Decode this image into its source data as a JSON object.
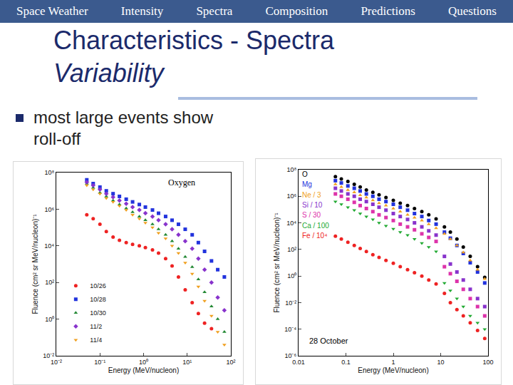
{
  "slide": {
    "nav": [
      "Space Weather",
      "Intensity",
      "Spectra",
      "Composition",
      "Predictions",
      "Questions"
    ],
    "title": "Characteristics - Spectra",
    "subtitle": "Variability",
    "bullets": [
      "most large events show roll-off"
    ]
  },
  "chart_data": [
    {
      "type": "scatter",
      "title": "Oxygen",
      "log": true,
      "grid": false,
      "legend": "lower left",
      "x_label": "Energy (MeV/nucleon)",
      "y_label": "Fluence (cm² sr MeV/nucleon)⁻¹",
      "x": [
        0.05,
        0.07,
        0.1,
        0.14,
        0.2,
        0.28,
        0.4,
        0.56,
        0.8,
        1.1,
        1.6,
        2.2,
        3.2,
        4.5,
        6.3,
        9,
        13,
        18,
        25,
        36,
        50,
        71
      ],
      "xlim": [
        0.01,
        100
      ],
      "xticks": [
        {
          "value": 0.01,
          "label": "10⁻²"
        },
        {
          "value": 0.1,
          "label": "10⁻¹"
        },
        {
          "value": 1,
          "label": "10⁰"
        },
        {
          "value": 10,
          "label": "10¹"
        },
        {
          "value": 100,
          "label": "10²"
        }
      ],
      "ylim": [
        0.01,
        100000000
      ],
      "yticks": [
        {
          "value": 0.01,
          "label": "10⁻²"
        },
        {
          "value": 1,
          "label": "10⁰"
        },
        {
          "value": 100,
          "label": "10²"
        },
        {
          "value": 10000,
          "label": "10⁴"
        },
        {
          "value": 1000000,
          "label": "10⁶"
        },
        {
          "value": 100000000,
          "label": "10⁸"
        }
      ],
      "series": [
        {
          "name": "10/26",
          "color": "#ee2222",
          "marker": "circle",
          "values": [
            500000,
            300000,
            150000,
            60000,
            30000,
            20000,
            15000,
            12000,
            10000,
            8000,
            6000,
            4000,
            2000,
            800,
            200,
            40,
            8,
            2,
            0.6,
            0.3,
            null,
            null
          ]
        },
        {
          "name": "10/28",
          "color": "#2233dd",
          "marker": "square",
          "values": [
            40000000,
            25000000,
            16000000,
            10000000,
            7000000,
            5000000,
            3500000,
            2500000,
            1800000,
            1300000,
            900000,
            600000,
            400000,
            250000,
            150000,
            80000,
            40000,
            15000,
            5000,
            1500,
            500,
            200
          ]
        },
        {
          "name": "10/30",
          "color": "#228833",
          "marker": "triangle-up",
          "values": [
            25000000,
            15000000,
            8000000,
            5000000,
            3000000,
            1800000,
            1100000,
            700000,
            400000,
            250000,
            150000,
            80000,
            40000,
            18000,
            7000,
            2500,
            700,
            150,
            30,
            5,
            1,
            0.2
          ]
        },
        {
          "name": "11/2",
          "color": "#8833cc",
          "marker": "diamond",
          "values": [
            30000000,
            20000000,
            12000000,
            7000000,
            4500000,
            3000000,
            2000000,
            1300000,
            900000,
            600000,
            400000,
            250000,
            150000,
            80000,
            40000,
            18000,
            7000,
            2000,
            500,
            100,
            15,
            3
          ]
        },
        {
          "name": "11/4",
          "color": "#f0a020",
          "marker": "triangle-down",
          "values": [
            20000000,
            12000000,
            7000000,
            4000000,
            2500000,
            1500000,
            900000,
            500000,
            300000,
            180000,
            100000,
            50000,
            25000,
            10000,
            4000,
            1200,
            300,
            60,
            10,
            1.5,
            0.2,
            0.04
          ]
        }
      ]
    },
    {
      "type": "scatter",
      "log": true,
      "grid": false,
      "x_label": "Energy (MeV/nucleon)",
      "y_label": "Fluence (cm² sr MeV/nucleon)⁻¹",
      "annotations": [
        "28 October"
      ],
      "x": [
        0.06,
        0.08,
        0.11,
        0.15,
        0.2,
        0.27,
        0.37,
        0.5,
        0.7,
        1,
        1.4,
        2,
        2.8,
        4,
        5.6,
        8,
        12,
        16,
        22,
        30,
        42,
        60,
        85
      ],
      "xlim": [
        0.01,
        100
      ],
      "xticks": [
        0.01,
        0.1,
        1,
        10,
        100
      ],
      "ylim": [
        1e-06,
        100000000
      ],
      "yticks": [
        {
          "value": 1e-06,
          "label": "10⁻⁶"
        },
        {
          "value": 0.0001,
          "label": "10⁻⁴"
        },
        {
          "value": 0.01,
          "label": "10⁻²"
        },
        {
          "value": 1,
          "label": "10⁰"
        },
        {
          "value": 100,
          "label": "10²"
        },
        {
          "value": 10000,
          "label": "10⁴"
        },
        {
          "value": 1000000,
          "label": "10⁶"
        },
        {
          "value": 100000000,
          "label": "10⁸"
        }
      ],
      "series": [
        {
          "name": "O",
          "color": "#000000",
          "marker": "circle",
          "values": [
            30000000,
            20000000,
            13000000,
            8000000,
            5000000,
            3000000,
            2000000,
            1300000,
            800000,
            500000,
            300000,
            200000,
            120000,
            70000,
            40000,
            20000,
            5000,
            2000,
            600,
            150,
            30,
            5,
            0.8
          ]
        },
        {
          "name": "Mg",
          "color": "#2233dd",
          "marker": "square",
          "values": [
            15000000,
            10000000,
            6000000,
            4000000,
            2500000,
            1500000,
            1000000,
            600000,
            400000,
            250000,
            150000,
            90000,
            50000,
            30000,
            15000,
            8000,
            2000,
            700,
            200,
            50,
            10,
            2,
            0.3
          ]
        },
        {
          "name": "Ne / 3",
          "color": "#f0a020",
          "marker": "triangle-up",
          "values": [
            8000000,
            5000000,
            3000000,
            2000000,
            1200000,
            800000,
            500000,
            300000,
            200000,
            120000,
            70000,
            40000,
            25000,
            15000,
            8000,
            4000,
            1500,
            600,
            200,
            60,
            15,
            3,
            0.6
          ]
        },
        {
          "name": "Si / 10",
          "color": "#8833cc",
          "marker": "square",
          "values": [
            4000000,
            2500000,
            1500000,
            1000000,
            600000,
            400000,
            250000,
            150000,
            90000,
            50000,
            30000,
            18000,
            10000,
            5000,
            2500,
            1200,
            30,
            8,
            2,
            0.5,
            0.1,
            0.02,
            0.005
          ]
        },
        {
          "name": "S / 30",
          "color": "#dd33aa",
          "marker": "square",
          "values": [
            1500000,
            1000000,
            600000,
            350000,
            200000,
            120000,
            70000,
            40000,
            25000,
            15000,
            8000,
            5000,
            3000,
            1500,
            800,
            400,
            5,
            1.5,
            0.4,
            0.1,
            0.02,
            0.005,
            0.001
          ]
        },
        {
          "name": "Ca / 100",
          "color": "#22aa33",
          "marker": "triangle-down",
          "values": [
            400000,
            250000,
            150000,
            90000,
            50000,
            30000,
            18000,
            10000,
            6000,
            3500,
            2000,
            1200,
            600,
            300,
            150,
            70,
            0.3,
            0.08,
            0.02,
            0.005,
            0.001,
            0.0003,
            0.0001
          ]
        },
        {
          "name": "Fe / 10⁴",
          "color": "#ee2222",
          "marker": "circle",
          "values": [
            1000,
            600,
            350,
            200,
            120,
            70,
            40,
            25,
            15,
            9,
            5,
            3,
            1.8,
            1,
            0.5,
            0.25,
            0.05,
            0.01,
            0.003,
            0.001,
            0.0003,
            8e-05,
            2e-05
          ]
        }
      ]
    }
  ]
}
